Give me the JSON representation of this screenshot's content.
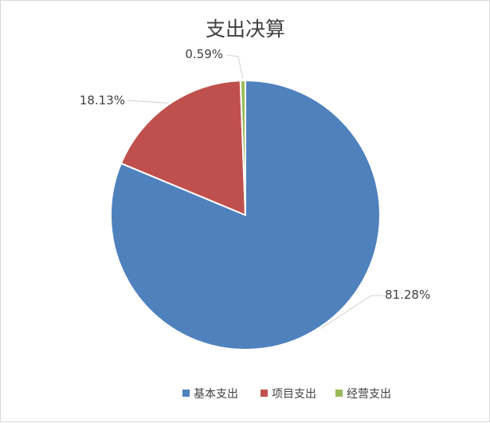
{
  "chart_data": {
    "type": "pie",
    "title": "支出决算",
    "categories": [
      "基本支出",
      "项目支出",
      "经营支出"
    ],
    "values": [
      81.28,
      18.13,
      0.59
    ],
    "value_labels": [
      "81.28%",
      "18.13%",
      "0.59%"
    ],
    "colors": [
      "#4F81BD",
      "#C0504D",
      "#9BBB59"
    ],
    "legend": {
      "position": "bottom",
      "entries": [
        "基本支出",
        "项目支出",
        "经营支出"
      ]
    }
  }
}
